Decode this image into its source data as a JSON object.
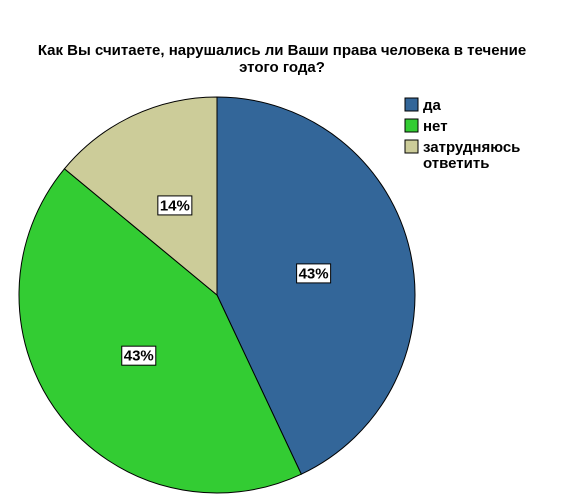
{
  "chart_data": {
    "type": "pie",
    "title_lines": [
      "Как Вы считаете, нарушались ли Ваши права человека в течение",
      "этого года?"
    ],
    "start_angle_deg": 0,
    "direction": "clockwise",
    "legend_position": "top-right",
    "slices": [
      {
        "name": "да",
        "legend_lines": [
          "да"
        ],
        "value": 43,
        "label": "43%",
        "color": "#336699"
      },
      {
        "name": "нет",
        "legend_lines": [
          "нет"
        ],
        "value": 43,
        "label": "43%",
        "color": "#33cc33"
      },
      {
        "name": "затрудняюсь ответить",
        "legend_lines": [
          "затрудняюсь",
          "ответить"
        ],
        "value": 14,
        "label": "14%",
        "color": "#cccc99"
      }
    ]
  }
}
